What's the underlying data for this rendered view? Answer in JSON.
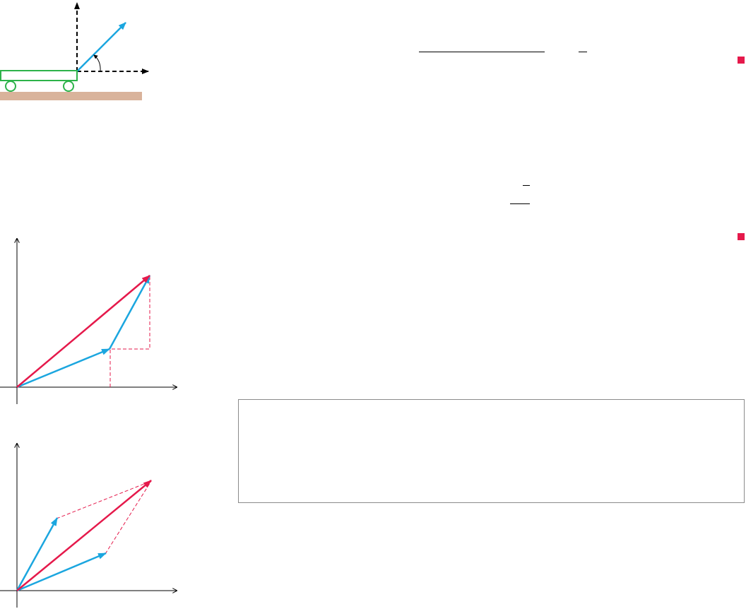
{
  "colors": {
    "vector_blue": "#1ba6df",
    "resultant_red": "#e5194b",
    "cart_green": "#2db34a",
    "ground_tan": "#d9b39b",
    "axis_black": "#000000",
    "end_mark_red": "#e5194b",
    "box_border": "#8a8a8a"
  },
  "figures": {
    "cart_force": {
      "components": [
        "vertical-component-dashed",
        "horizontal-component-dashed",
        "applied-force-vector",
        "angle-arc",
        "cart-body",
        "wheels",
        "ground"
      ]
    },
    "vector_addition_triangle": {
      "components": [
        "axes",
        "first-vector",
        "second-vector-tip-to-tail",
        "resultant-vector",
        "dashed-component-guides"
      ]
    },
    "vector_addition_parallelogram": {
      "components": [
        "axes",
        "first-vector",
        "second-vector",
        "resultant-diagonal",
        "dashed-parallelogram-sides"
      ]
    }
  },
  "markers": {
    "end_of_example_count": 2
  },
  "callout": {
    "text": ""
  }
}
